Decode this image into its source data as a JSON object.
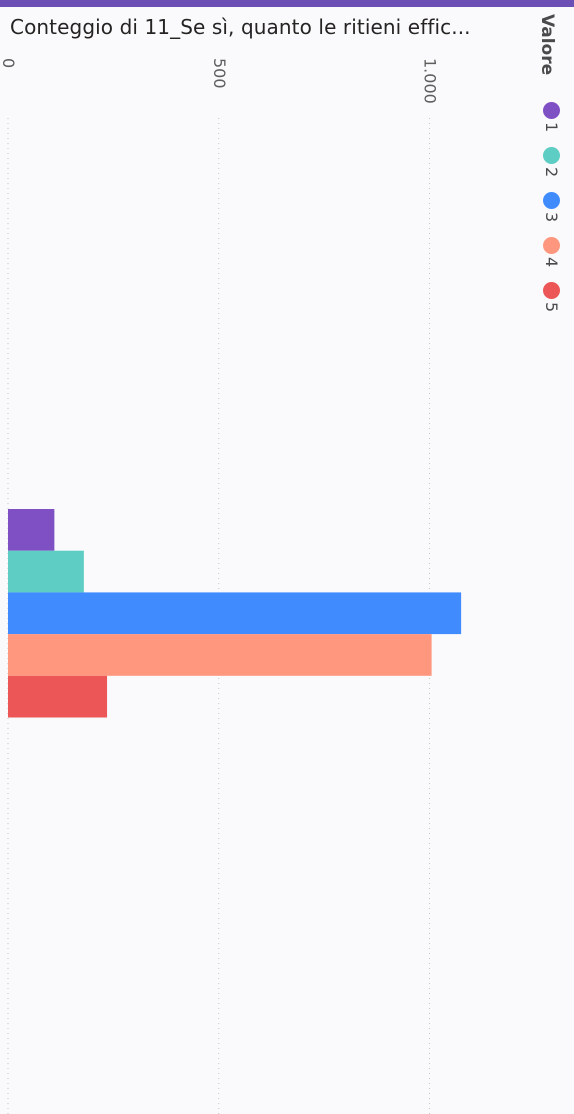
{
  "header": {
    "title": "Conteggio di 11_Se sì, quanto le ritieni effic..."
  },
  "legend": {
    "title": "Valore",
    "items": [
      {
        "label": "1",
        "color": "#7f4fc4"
      },
      {
        "label": "2",
        "color": "#5ecdc4"
      },
      {
        "label": "3",
        "color": "#408cff"
      },
      {
        "label": "4",
        "color": "#ff977e"
      },
      {
        "label": "5",
        "color": "#ec5656"
      }
    ]
  },
  "chart_data": {
    "type": "bar",
    "orientation": "horizontal",
    "title": "Conteggio di 11_Se sì, quanto le ritieni effic...",
    "legend_title": "Valore",
    "xlim": [
      0,
      1350
    ],
    "ticks": [
      0,
      500,
      1000
    ],
    "tick_labels": [
      "0",
      "500",
      "1.000"
    ],
    "grid": true,
    "series": [
      {
        "name": "1",
        "value": 110,
        "color": "#7f4fc4"
      },
      {
        "name": "2",
        "value": 180,
        "color": "#5ecdc4"
      },
      {
        "name": "3",
        "value": 1075,
        "color": "#408cff"
      },
      {
        "name": "4",
        "value": 1005,
        "color": "#ff977e"
      },
      {
        "name": "5",
        "value": 235,
        "color": "#ec5656"
      }
    ]
  }
}
